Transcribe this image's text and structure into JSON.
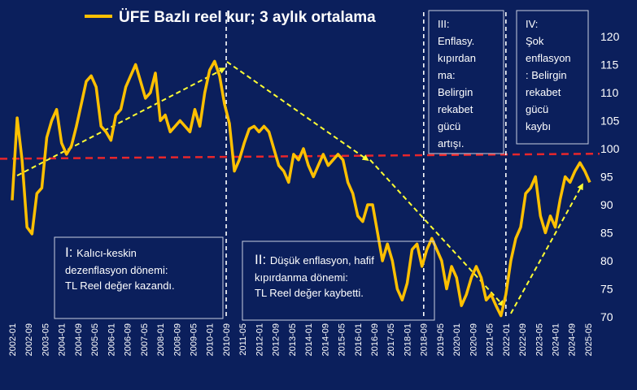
{
  "chart_data": {
    "type": "line",
    "legend": "ÜFE Bazlı reel kur; 3 aylık ortalama",
    "legend_placement": "top-left",
    "colors": {
      "background": "#0b1f5c",
      "line": "#ffc000",
      "mean_line": "#e8262b",
      "trend_arrows": "#ffff33",
      "text": "#ffffff"
    },
    "yaxis": {
      "position": "right",
      "ylim": [
        70,
        120
      ],
      "ticks": [
        70,
        75,
        80,
        85,
        90,
        95,
        100,
        105,
        110,
        115,
        120
      ]
    },
    "xaxis": {
      "ticks": [
        "2002-01",
        "2002-09",
        "2003-05",
        "2004-01",
        "2004-09",
        "2005-05",
        "2006-01",
        "2006-09",
        "2007-05",
        "2008-01",
        "2008-09",
        "2009-05",
        "2010-01",
        "2010-09",
        "2011-05",
        "2012-01",
        "2012-09",
        "2013-05",
        "2014-01",
        "2014-09",
        "2015-05",
        "2016-01",
        "2016-09",
        "2017-05",
        "2018-01",
        "2018-09",
        "2019-05",
        "2020-01",
        "2020-09",
        "2021-05",
        "2022-01",
        "2022-09",
        "2023-05",
        "2024-01",
        "2024-09",
        "2025-05"
      ]
    },
    "mean_line_value": 98.2,
    "series": [
      {
        "x": [
          2002.0,
          2002.2,
          2002.4,
          2002.6,
          2002.8,
          2003.0,
          2003.2,
          2003.4,
          2003.6,
          2003.8,
          2004.0,
          2004.2,
          2004.4,
          2004.6,
          2004.8,
          2005.0,
          2005.2,
          2005.4,
          2005.6,
          2005.8,
          2006.0,
          2006.2,
          2006.4,
          2006.6,
          2006.8,
          2007.0,
          2007.2,
          2007.4,
          2007.6,
          2007.8,
          2008.0,
          2008.2,
          2008.4,
          2008.6,
          2008.8,
          2009.0,
          2009.2,
          2009.4,
          2009.6,
          2009.8,
          2010.0,
          2010.2,
          2010.4,
          2010.6,
          2010.8,
          2011.0,
          2011.2,
          2011.4,
          2011.6,
          2011.8,
          2012.0,
          2012.2,
          2012.4,
          2012.6,
          2012.8,
          2013.0,
          2013.2,
          2013.4,
          2013.6,
          2013.8,
          2014.0,
          2014.2,
          2014.4,
          2014.6,
          2014.8,
          2015.0,
          2015.2,
          2015.4,
          2015.6,
          2015.8,
          2016.0,
          2016.2,
          2016.4,
          2016.6,
          2016.8,
          2017.0,
          2017.2,
          2017.4,
          2017.6,
          2017.8,
          2018.0,
          2018.2,
          2018.4,
          2018.6,
          2018.8,
          2019.0,
          2019.2,
          2019.4,
          2019.6,
          2019.8,
          2020.0,
          2020.2,
          2020.4,
          2020.6,
          2020.8,
          2021.0,
          2021.2,
          2021.4,
          2021.6,
          2021.8,
          2022.0,
          2022.2,
          2022.4,
          2022.6,
          2022.8,
          2023.0,
          2023.2,
          2023.4,
          2023.6,
          2023.8,
          2024.0,
          2024.2,
          2024.4,
          2024.6,
          2024.8,
          2025.0,
          2025.2,
          2025.4
        ],
        "values": [
          90.8,
          105.5,
          98,
          86,
          84.8,
          92,
          93,
          102,
          105,
          107,
          101,
          99,
          100.5,
          104,
          108,
          112,
          113,
          111,
          104,
          103,
          101.5,
          106,
          107,
          111,
          113,
          115,
          112,
          109,
          110,
          113.5,
          105,
          106,
          103,
          104,
          105,
          104,
          103,
          107,
          104,
          110,
          114,
          115.6,
          113,
          108,
          104.5,
          96,
          98,
          101,
          103.5,
          104,
          103,
          104,
          103,
          100,
          97,
          96,
          94,
          99,
          98,
          100,
          97,
          95,
          97,
          99,
          97,
          98,
          99,
          98,
          94,
          92,
          88,
          87,
          90,
          90,
          85,
          80,
          83,
          80,
          75,
          73,
          76,
          82,
          83,
          79,
          82,
          84,
          82,
          80,
          75,
          79,
          77,
          72,
          74,
          77,
          79,
          77,
          73,
          74,
          72,
          70.2,
          74,
          80,
          84,
          86,
          92,
          93,
          95,
          88,
          85,
          88,
          86,
          91,
          95,
          94,
          96,
          97.5,
          96,
          94
        ]
      }
    ],
    "annotations": [
      {
        "title": "I:",
        "lines": [
          "Kalıcı-keskin",
          "dezenflasyon dönemi:",
          "TL Reel değer kazandı."
        ]
      },
      {
        "title": "II:",
        "lines": [
          "Düşük enflasyon, hafif",
          "kıpırdanma dönemi:",
          "TL Reel değer kaybetti."
        ]
      },
      {
        "title": "III:",
        "lines": [
          "Enflasy.",
          "kıpırdan",
          "ma:",
          "Belirgin",
          "rekabet",
          "gücü",
          "artışı."
        ]
      },
      {
        "title": "IV:",
        "lines": [
          "Şok",
          "enflasyon",
          ": Belirgin",
          "rekabet",
          "gücü",
          "kaybı"
        ]
      }
    ]
  }
}
